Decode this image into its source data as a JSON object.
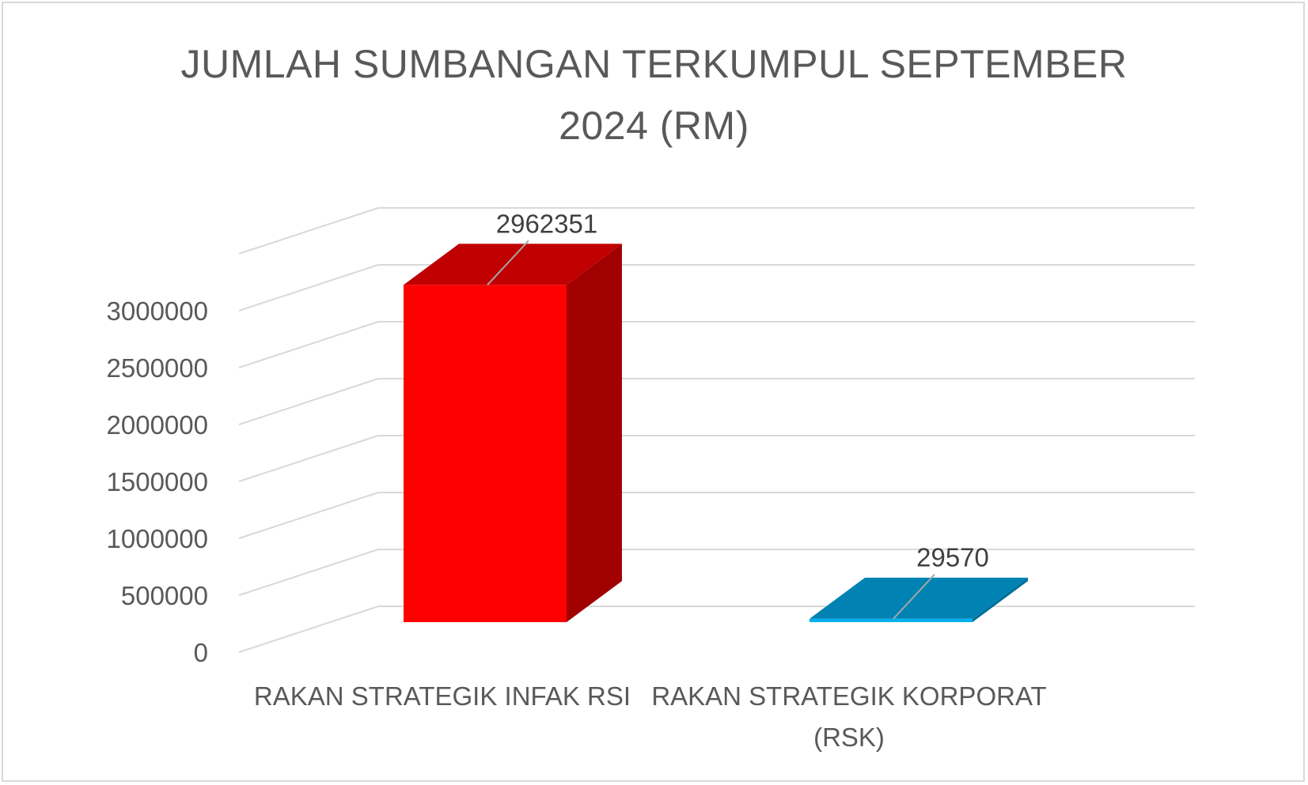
{
  "chart_data": {
    "type": "bar",
    "title": "JUMLAH SUMBANGAN TERKUMPUL SEPTEMBER 2024 (RM)",
    "title_lines": [
      "JUMLAH SUMBANGAN TERKUMPUL SEPTEMBER",
      "2024 (RM)"
    ],
    "categories": [
      [
        "RAKAN STRATEGIK INFAK RSI"
      ],
      [
        "RAKAN STRATEGIK KORPORAT",
        "(RSK)"
      ]
    ],
    "values": [
      2962351,
      29570
    ],
    "data_labels": [
      "2962351",
      "29570"
    ],
    "ylim": [
      0,
      3500000
    ],
    "yticks": [
      "0",
      "500000",
      "1000000",
      "1500000",
      "2000000",
      "2500000",
      "3000000"
    ],
    "grid": true,
    "style_3d": true,
    "colors": {
      "bar1_front": "#ff0000",
      "bar1_top": "#c00000",
      "bar1_side": "#a00000",
      "bar2_front": "#00b0f0",
      "bar2_top": "#0082b3",
      "bar2_side": "#006e99",
      "grid": "#d9d9d9",
      "text": "#595959"
    }
  }
}
